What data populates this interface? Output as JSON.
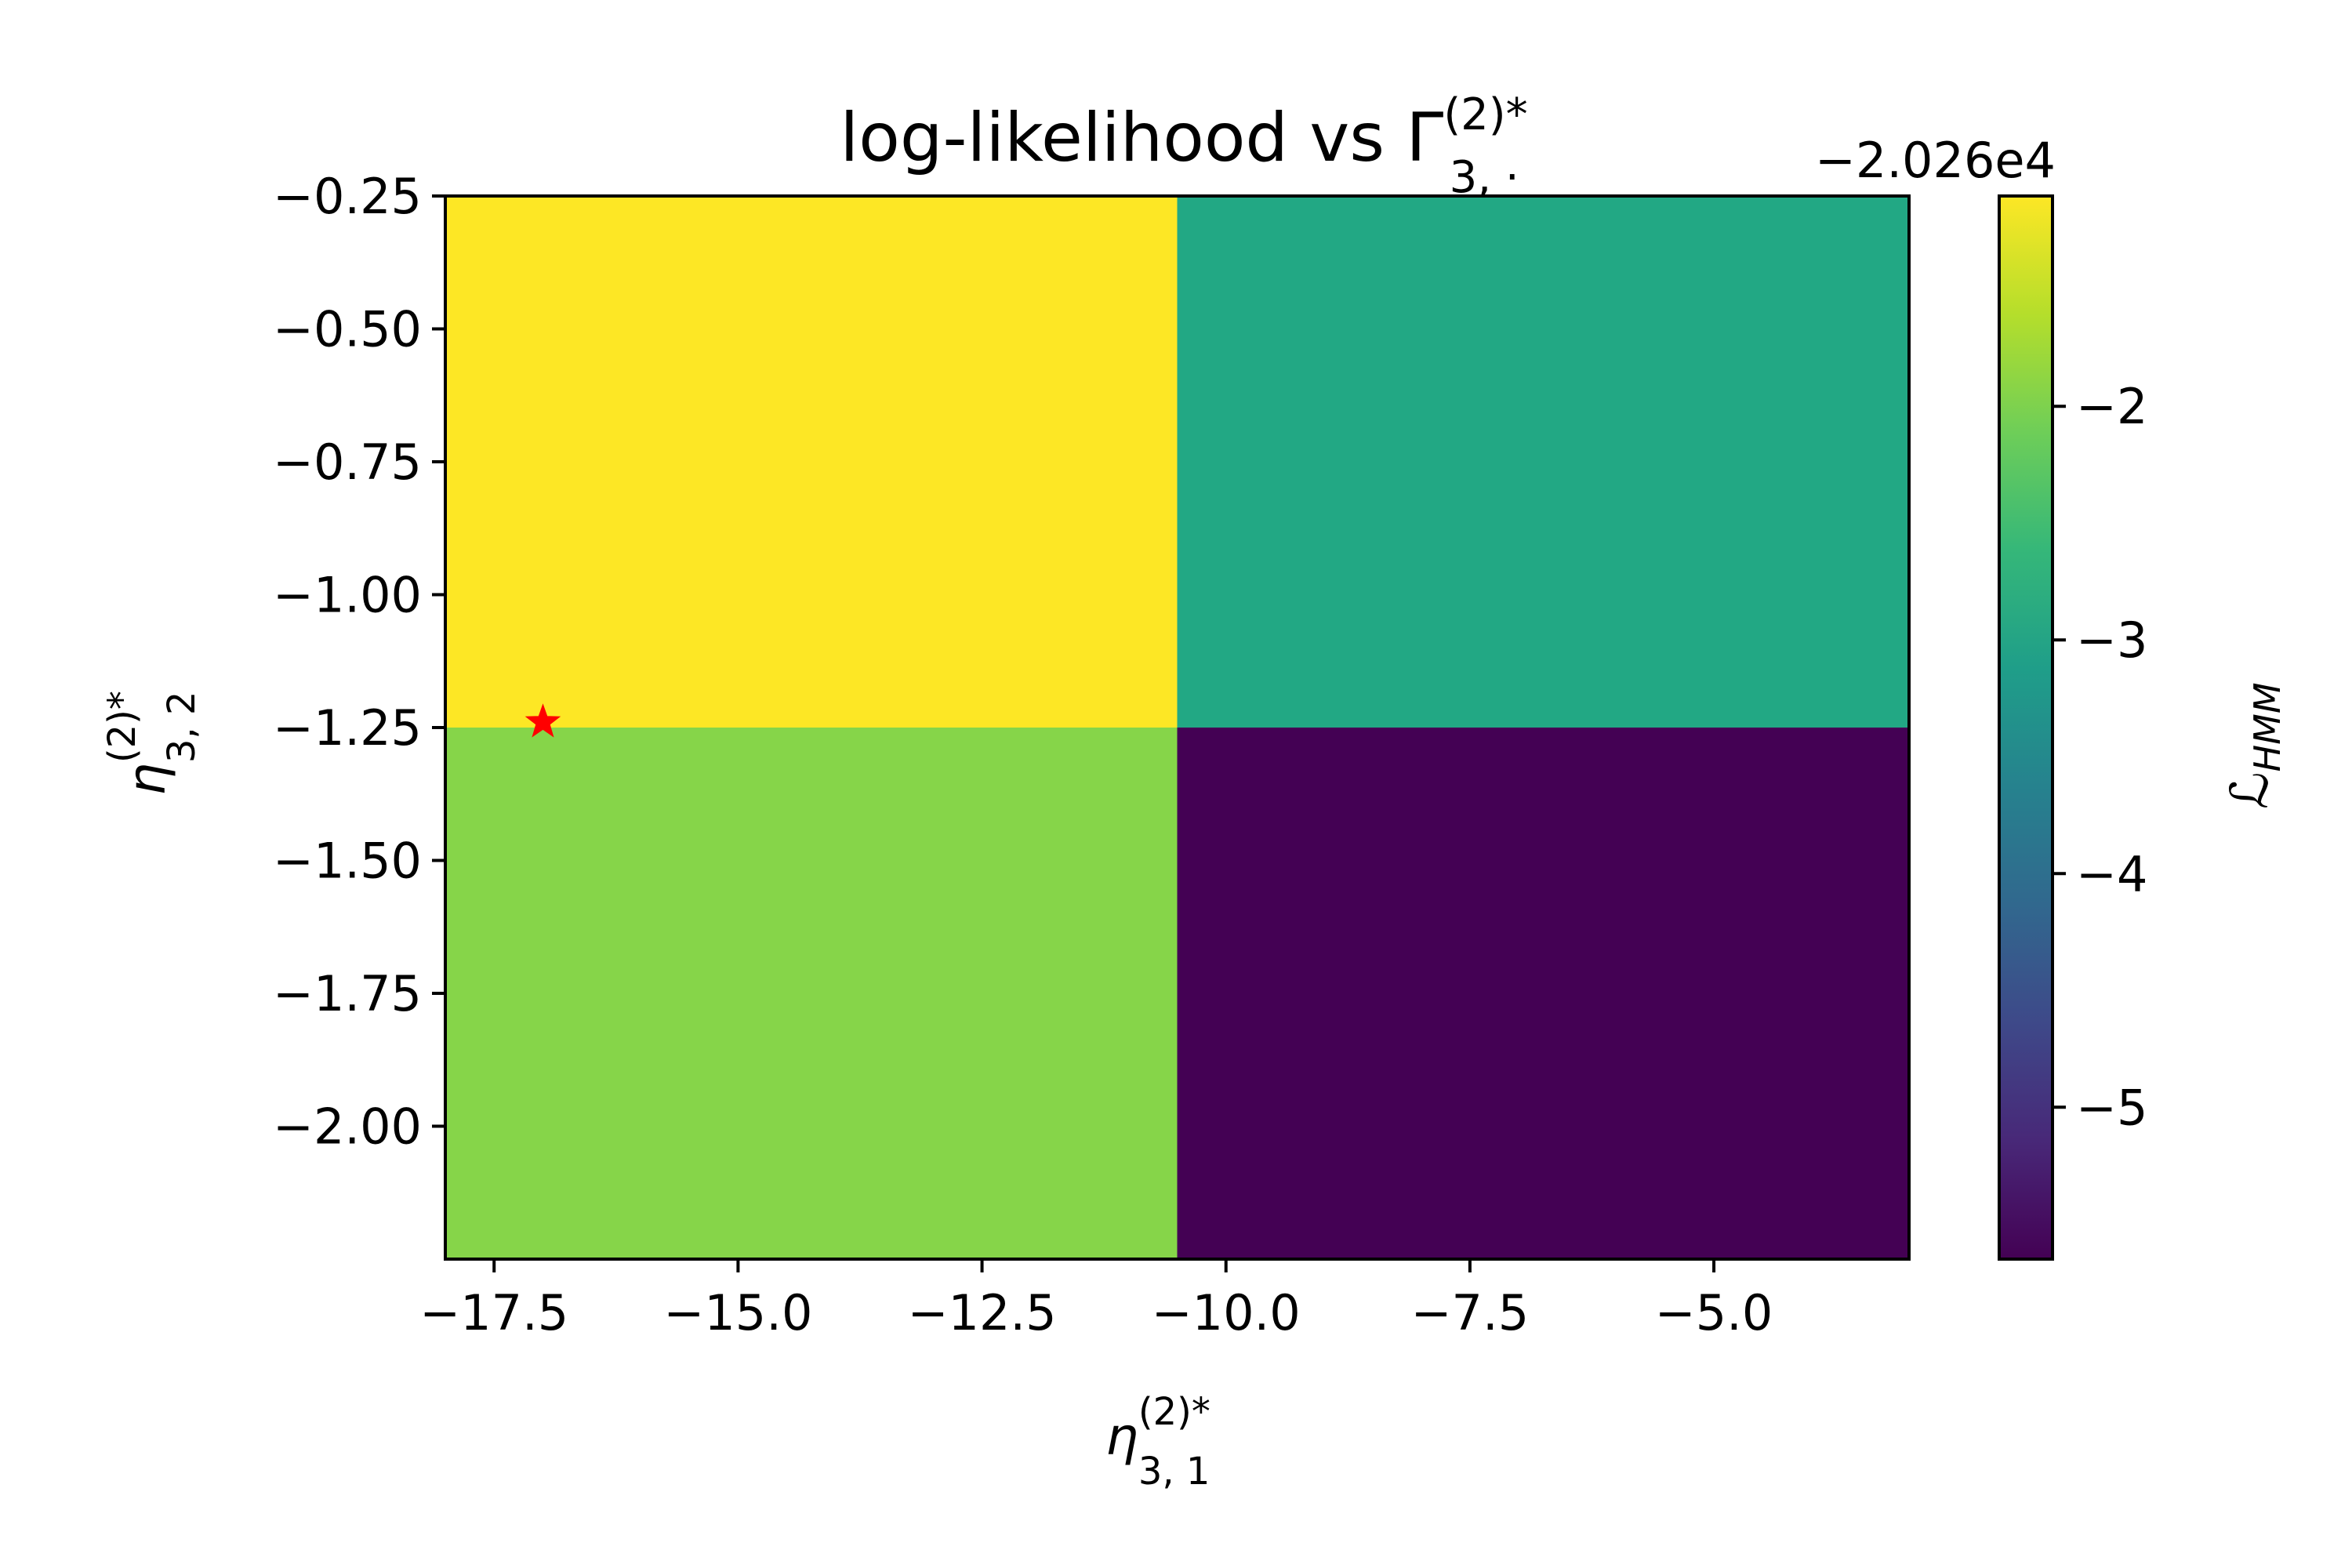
{
  "chart_data": {
    "type": "heatmap",
    "title": "log-likelihood vs Γ(2)*3,·",
    "title_parts": {
      "main": "log-likelihood vs Γ",
      "sup": "(2)*",
      "sub": "3, ·"
    },
    "xlabel": "η(2)*3,1",
    "xlabel_parts": {
      "main": "η",
      "sup": "(2)*",
      "sub": "3, 1"
    },
    "ylabel": "η(2)*3,2",
    "ylabel_parts": {
      "main": "η",
      "sup": "(2)*",
      "sub": "3, 2"
    },
    "xlim": [
      -18.0,
      -3.0
    ],
    "ylim": [
      -2.25,
      -0.25
    ],
    "x_edges": [
      -18.0,
      -10.5,
      -3.0
    ],
    "y_edges": [
      -2.25,
      -1.25,
      -0.25
    ],
    "x_ticks": [
      -17.5,
      -15.0,
      -12.5,
      -10.0,
      -7.5,
      -5.0
    ],
    "x_tick_labels": [
      "−17.5",
      "−15.0",
      "−12.5",
      "−10.0",
      "−7.5",
      "−5.0"
    ],
    "y_ticks": [
      -0.25,
      -0.5,
      -0.75,
      -1.0,
      -1.25,
      -1.5,
      -1.75,
      -2.0
    ],
    "y_tick_labels": [
      "−0.25",
      "−0.50",
      "−0.75",
      "−1.00",
      "−1.25",
      "−1.50",
      "−1.75",
      "−2.00"
    ],
    "cells": [
      {
        "x": [
          -18.0,
          -10.5
        ],
        "y": [
          -1.25,
          -0.25
        ],
        "value": -1.1,
        "color": "#fde725"
      },
      {
        "x": [
          -10.5,
          -3.0
        ],
        "y": [
          -1.25,
          -0.25
        ],
        "value": -3.0,
        "color": "#22a884"
      },
      {
        "x": [
          -18.0,
          -10.5
        ],
        "y": [
          -2.25,
          -1.25
        ],
        "value": -1.7,
        "color": "#86d549"
      },
      {
        "x": [
          -10.5,
          -3.0
        ],
        "y": [
          -2.25,
          -1.25
        ],
        "value": -5.6,
        "color": "#440154"
      }
    ],
    "marker": {
      "x": -17.0,
      "y": -1.24,
      "symbol": "star",
      "color": "#ff0000"
    },
    "colorbar": {
      "label": "ℒHMM",
      "label_parts": {
        "main": "ℒ",
        "sub": "HMM"
      },
      "offset_text": "−2.026e4",
      "range": [
        -5.65,
        -1.1
      ],
      "ticks": [
        -2,
        -3,
        -4,
        -5
      ],
      "tick_labels": [
        "−2",
        "−3",
        "−4",
        "−5"
      ],
      "colormap": "viridis",
      "stops": [
        "#440154",
        "#482878",
        "#3e4989",
        "#31688e",
        "#26828e",
        "#1f9e89",
        "#35b779",
        "#6ece58",
        "#b5de2b",
        "#fde725"
      ]
    }
  }
}
